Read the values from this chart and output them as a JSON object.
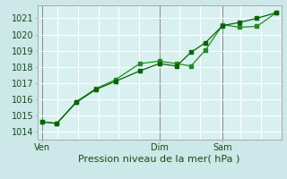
{
  "title": "Pression niveau de la mer( hPa )",
  "bg_color": "#cce8e8",
  "plot_bg_color": "#d8f0f0",
  "grid_color": "#ffffff",
  "line_color1": "#006400",
  "line_color2": "#228B22",
  "ylim": [
    1013.5,
    1021.8
  ],
  "yticks": [
    1014,
    1015,
    1016,
    1017,
    1018,
    1019,
    1020,
    1021
  ],
  "xlim": [
    0,
    1.0
  ],
  "xtick_labels": [
    "Ven",
    "Dim",
    "Sam"
  ],
  "xtick_positions": [
    0.02,
    0.5,
    0.76
  ],
  "vline_positions": [
    0.02,
    0.5,
    0.76
  ],
  "series1_x": [
    0.02,
    0.08,
    0.16,
    0.24,
    0.32,
    0.42,
    0.5,
    0.57,
    0.63,
    0.69,
    0.76,
    0.83,
    0.9,
    0.98
  ],
  "series1_y": [
    1014.6,
    1014.5,
    1015.8,
    1016.6,
    1017.1,
    1017.75,
    1018.2,
    1018.05,
    1018.9,
    1019.5,
    1020.55,
    1020.75,
    1021.0,
    1021.35
  ],
  "series2_x": [
    0.02,
    0.08,
    0.16,
    0.24,
    0.32,
    0.42,
    0.5,
    0.57,
    0.63,
    0.69,
    0.76,
    0.83,
    0.9,
    0.98
  ],
  "series2_y": [
    1014.6,
    1014.5,
    1015.85,
    1016.65,
    1017.2,
    1018.2,
    1018.35,
    1018.2,
    1018.05,
    1019.05,
    1020.6,
    1020.45,
    1020.5,
    1021.35
  ],
  "ylabel_fontsize": 7,
  "xlabel_fontsize": 8,
  "tick_label_color": "#1a4a1a",
  "spine_color": "#aaaaaa",
  "figsize": [
    3.2,
    2.0
  ],
  "dpi": 100
}
